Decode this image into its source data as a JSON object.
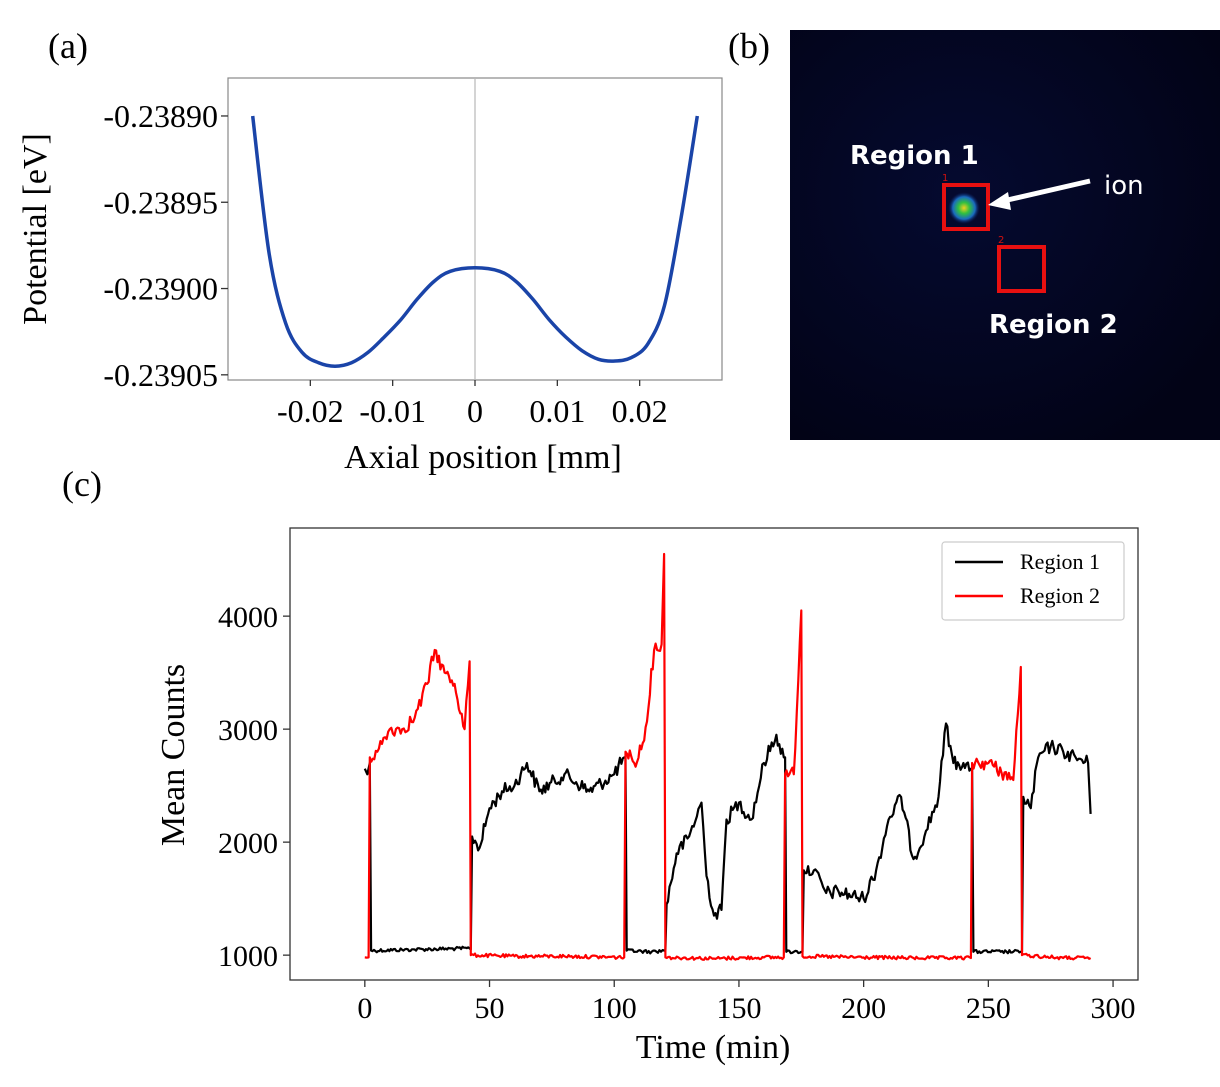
{
  "panels": {
    "a": {
      "label": "(a)"
    },
    "b": {
      "label": "(b)"
    },
    "c": {
      "label": "(c)"
    }
  },
  "image_b": {
    "region1_label": "Region 1",
    "region2_label": "Region 2",
    "region1_tag": "1",
    "region2_tag": "2",
    "ion_label": "ion"
  },
  "colors": {
    "curve_a": "#1a44a8",
    "region1": "#000000",
    "region2": "#ff0000"
  },
  "chart_data": [
    {
      "type": "line",
      "title": "",
      "xlabel": "Axial position [mm]",
      "ylabel": "Potential [eV]",
      "xlim": [
        -0.03,
        0.03
      ],
      "ylim": [
        -0.239053,
        -0.238878
      ],
      "xticks": [
        -0.02,
        -0.01,
        0,
        0.01,
        0.02
      ],
      "xtick_labels": [
        "-0.02",
        "-0.01",
        "0",
        "0.01",
        "0.02"
      ],
      "yticks": [
        -0.2389,
        -0.23895,
        -0.239,
        -0.23905
      ],
      "ytick_labels": [
        "-0.23890",
        "-0.23895",
        "-0.23900",
        "-0.23905"
      ],
      "vline_x": 0,
      "series": [
        {
          "name": "Potential",
          "x": [
            -0.027,
            -0.025,
            -0.023,
            -0.021,
            -0.019,
            -0.017,
            -0.015,
            -0.013,
            -0.011,
            -0.009,
            -0.007,
            -0.005,
            -0.003,
            0,
            0.003,
            0.005,
            0.007,
            0.009,
            0.011,
            0.013,
            0.015,
            0.017,
            0.019,
            0.021,
            0.023,
            0.025,
            0.027
          ],
          "y": [
            -0.2389,
            -0.23898,
            -0.23902,
            -0.239037,
            -0.239043,
            -0.239045,
            -0.239043,
            -0.239037,
            -0.239028,
            -0.239018,
            -0.239006,
            -0.238996,
            -0.23899,
            -0.238988,
            -0.23899,
            -0.238996,
            -0.239006,
            -0.239018,
            -0.239028,
            -0.239036,
            -0.239041,
            -0.239042,
            -0.23904,
            -0.239032,
            -0.23901,
            -0.23896,
            -0.2389
          ]
        }
      ]
    },
    {
      "type": "line",
      "title": "",
      "xlabel": "Time (min)",
      "ylabel": "Mean Counts",
      "xlim": [
        -30,
        310
      ],
      "ylim": [
        780,
        4780
      ],
      "xticks": [
        0,
        50,
        100,
        150,
        200,
        250,
        300
      ],
      "yticks": [
        1000,
        2000,
        3000,
        4000
      ],
      "legend_position": "top-right",
      "series": [
        {
          "name": "Region 1",
          "x": [
            0,
            1,
            2,
            2.5,
            20,
            42,
            42.5,
            43,
            46,
            50,
            55,
            60,
            65,
            70,
            80,
            90,
            100,
            104,
            104.5,
            105,
            115,
            120,
            120.5,
            121,
            125,
            130,
            135,
            137,
            140,
            143,
            145,
            150,
            155,
            160,
            165,
            168,
            168.5,
            169,
            172,
            175,
            175.5,
            176,
            180,
            185,
            190,
            200,
            205,
            210,
            215,
            220,
            225,
            230,
            233,
            236,
            240,
            243,
            243.5,
            244,
            255,
            263,
            263.5,
            264,
            267,
            270,
            275,
            280,
            285,
            290,
            291
          ],
          "y": [
            2650,
            2600,
            2700,
            1040,
            1050,
            1060,
            1050,
            2050,
            1950,
            2300,
            2450,
            2500,
            2700,
            2450,
            2600,
            2450,
            2600,
            2750,
            2750,
            1040,
            1030,
            1040,
            1040,
            1450,
            1900,
            2050,
            2350,
            1700,
            1350,
            1400,
            2200,
            2350,
            2200,
            2700,
            2950,
            2750,
            2750,
            1030,
            1030,
            1030,
            1030,
            1750,
            1750,
            1550,
            1560,
            1500,
            1750,
            2200,
            2400,
            1850,
            2100,
            2400,
            3050,
            2700,
            2700,
            2650,
            2650,
            1030,
            1030,
            1030,
            1030,
            2400,
            2300,
            2750,
            2850,
            2800,
            2750,
            2700,
            2250
          ]
        },
        {
          "name": "Region 2",
          "x": [
            0,
            1.5,
            2,
            5,
            10,
            15,
            20,
            25,
            28,
            32,
            36,
            40,
            42,
            42.5,
            60,
            80,
            104,
            104.5,
            108,
            112,
            116,
            119,
            120,
            120.5,
            140,
            160,
            168,
            168.5,
            172,
            175,
            175.5,
            200,
            220,
            243,
            243.5,
            250,
            260,
            263,
            263.5,
            280,
            291
          ],
          "y": [
            980,
            980,
            2750,
            2800,
            3000,
            3000,
            3100,
            3400,
            3700,
            3500,
            3400,
            3000,
            3600,
            1000,
            990,
            990,
            980,
            2800,
            2700,
            2900,
            3700,
            3750,
            4550,
            980,
            970,
            980,
            980,
            2600,
            2600,
            4050,
            990,
            980,
            975,
            975,
            2700,
            2700,
            2550,
            3550,
            1000,
            975,
            975
          ]
        }
      ]
    }
  ]
}
